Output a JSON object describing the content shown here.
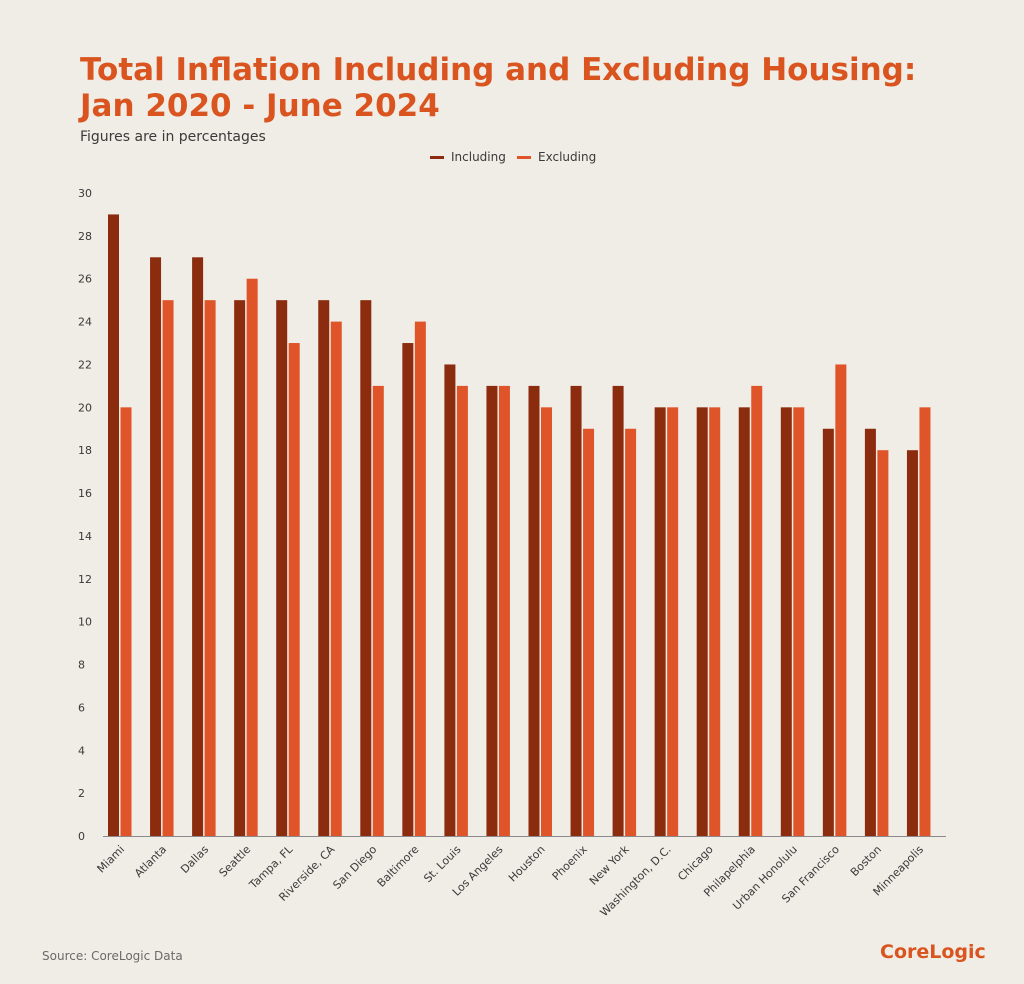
{
  "colors": {
    "background": "#f0ece6",
    "title": "#d9541e",
    "including": "#8b2c0e",
    "excluding": "#e0542a",
    "axis": "#8a8a8a",
    "text": "#3a3a3a"
  },
  "header": {
    "title_line1": "Total Inflation Including and Excluding Housing:",
    "title_line2": "Jan 2020 - June 2024",
    "subtitle": "Figures are in percentages"
  },
  "footer": {
    "source": "Source: CoreLogic Data",
    "brand": "CoreLogic"
  },
  "chart_data": {
    "type": "bar",
    "categories": [
      "Miami",
      "Atlanta",
      "Dallas",
      "Seattle",
      "Tampa, FL",
      "Riverside, CA",
      "San Diego",
      "Baltimore",
      "St. Louis",
      "Los Angeles",
      "Houston",
      "Phoenix",
      "New York",
      "Washington, D.C.",
      "Chicago",
      "Philapelphia",
      "Urban Honolulu",
      "San Francisco",
      "Boston",
      "Minneapolis"
    ],
    "series": [
      {
        "name": "Including",
        "values": [
          29,
          27,
          27,
          25,
          25,
          25,
          25,
          23,
          22,
          21,
          21,
          21,
          21,
          20,
          20,
          20,
          20,
          19,
          19,
          18
        ]
      },
      {
        "name": "Excluding",
        "values": [
          20,
          25,
          25,
          26,
          23,
          24,
          21,
          24,
          21,
          21,
          20,
          19,
          19,
          20,
          20,
          21,
          20,
          22,
          18,
          20
        ]
      }
    ],
    "ylim": [
      0,
      30
    ],
    "yticks": [
      0,
      2,
      4,
      6,
      8,
      10,
      12,
      14,
      16,
      18,
      20,
      22,
      24,
      26,
      28,
      30
    ],
    "legend_position": "top-center",
    "grid": false
  }
}
